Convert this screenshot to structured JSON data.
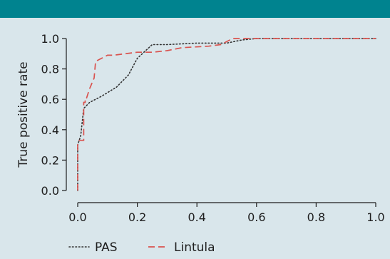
{
  "header_bar_color": "#00838f",
  "background_color": "#d9e6eb",
  "chart_data": {
    "type": "line",
    "title": "",
    "xlabel": "",
    "ylabel": "True positive rate",
    "xlim": [
      0,
      1
    ],
    "ylim": [
      0,
      1
    ],
    "xticks": [
      0.0,
      0.2,
      0.4,
      0.6,
      0.8,
      1.0
    ],
    "yticks": [
      0.0,
      0.2,
      0.4,
      0.6,
      0.8,
      1.0
    ],
    "xtick_labels": [
      "0.0",
      "0.2",
      "0.4",
      "0.6",
      "0.8",
      "1.0"
    ],
    "ytick_labels": [
      "0.0",
      "0.2",
      "0.4",
      "0.6",
      "0.8",
      "1.0"
    ],
    "grid": false,
    "legend_position": "bottom-left",
    "series": [
      {
        "name": "PAS",
        "style": "dotted",
        "color": "#333333",
        "x": [
          0.0,
          0.0,
          0.01,
          0.02,
          0.04,
          0.08,
          0.13,
          0.17,
          0.2,
          0.25,
          0.3,
          0.4,
          0.5,
          0.55,
          0.6,
          1.0
        ],
        "y": [
          0.0,
          0.3,
          0.36,
          0.54,
          0.58,
          0.62,
          0.68,
          0.76,
          0.87,
          0.96,
          0.96,
          0.97,
          0.97,
          0.99,
          1.0,
          1.0
        ]
      },
      {
        "name": "Lintula",
        "style": "dashed",
        "color": "#d9534f",
        "x": [
          0.0,
          0.0,
          0.005,
          0.02,
          0.02,
          0.025,
          0.025,
          0.03,
          0.04,
          0.055,
          0.06,
          0.1,
          0.12,
          0.2,
          0.25,
          0.3,
          0.35,
          0.44,
          0.48,
          0.5,
          0.52,
          0.55,
          0.6,
          1.0
        ],
        "y": [
          0.0,
          0.3,
          0.33,
          0.33,
          0.58,
          0.58,
          0.61,
          0.61,
          0.67,
          0.74,
          0.85,
          0.89,
          0.89,
          0.91,
          0.91,
          0.92,
          0.94,
          0.95,
          0.96,
          0.98,
          1.0,
          1.0,
          1.0,
          1.0
        ]
      }
    ]
  }
}
